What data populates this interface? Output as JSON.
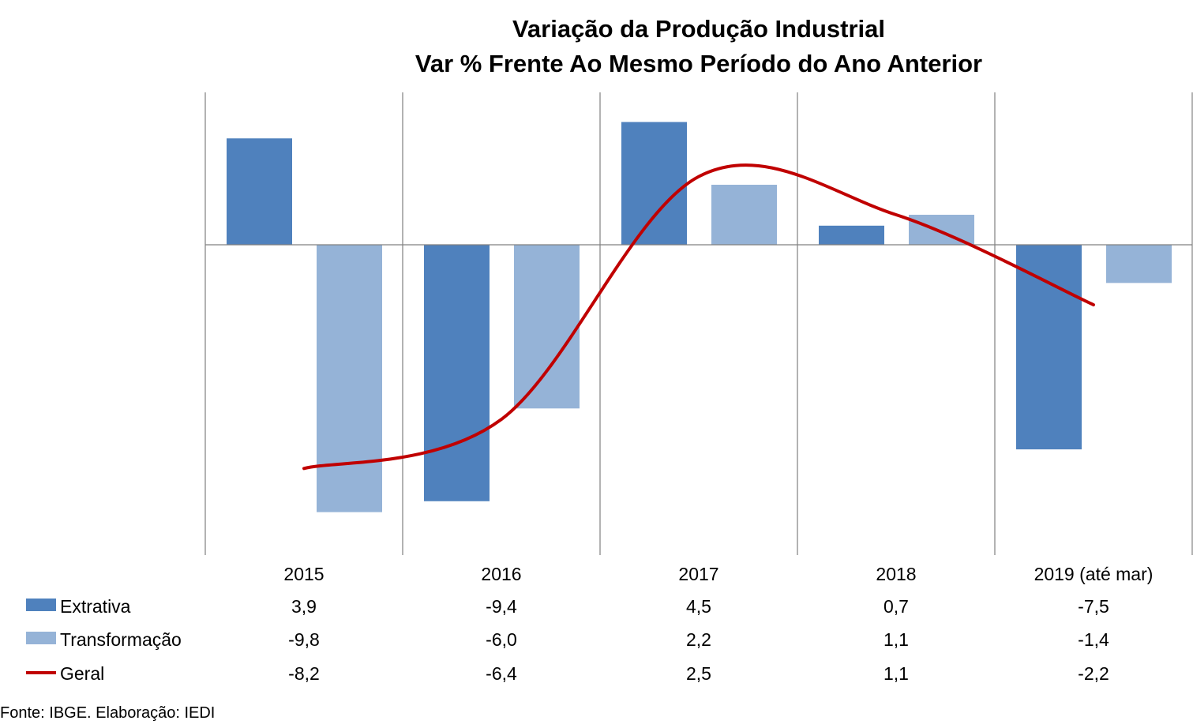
{
  "chart_data": {
    "type": "bar",
    "title": "Variação da Produção Industrial",
    "subtitle": "Var % Frente Ao Mesmo Período do Ano Anterior",
    "categories": [
      "2015",
      "2016",
      "2017",
      "2018",
      "2019 (até mar)"
    ],
    "series": [
      {
        "name": "Extrativa",
        "type": "bar",
        "color": "#4f81bd",
        "values": [
          3.9,
          -9.4,
          4.5,
          0.7,
          -7.5
        ],
        "labels": [
          "3,9",
          "-9,4",
          "4,5",
          "0,7",
          "-7,5"
        ]
      },
      {
        "name": "Transformação",
        "type": "bar",
        "color": "#95b3d7",
        "values": [
          -9.8,
          -6.0,
          2.2,
          1.1,
          -1.4
        ],
        "labels": [
          "-9,8",
          "-6,0",
          "2,2",
          "1,1",
          "-1,4"
        ]
      },
      {
        "name": "Geral",
        "type": "line",
        "color": "#c00000",
        "values": [
          -8.2,
          -6.4,
          2.5,
          1.1,
          -2.2
        ],
        "labels": [
          "-8,2",
          "-6,4",
          "2,5",
          "1,1",
          "-2,2"
        ]
      }
    ],
    "ylim": [
      -11,
      5.5
    ],
    "grid": false,
    "legend": "data-table-below"
  },
  "source": "Fonte: IBGE. Elaboração: IEDI"
}
